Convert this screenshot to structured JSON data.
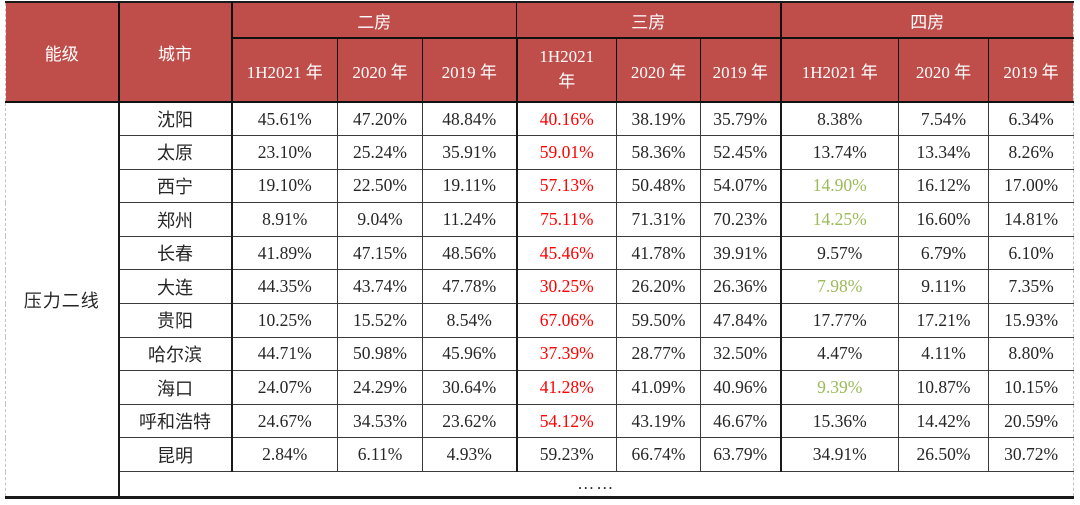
{
  "chart_data": {
    "type": "table",
    "row_header_label": "能级",
    "city_header_label": "城市",
    "tier_label": "压力二线",
    "col_groups": [
      {
        "label": "二房",
        "columns": [
          "1H2021 年",
          "2020 年",
          "2019 年"
        ]
      },
      {
        "label": "三房",
        "columns": [
          "1H2021 年",
          "2020 年",
          "2019 年"
        ]
      },
      {
        "label": "四房",
        "columns": [
          "1H2021 年",
          "2020 年",
          "2019 年"
        ]
      }
    ],
    "rows": [
      {
        "city": "沈阳",
        "values": [
          "45.61%",
          "47.20%",
          "48.84%",
          "40.16%",
          "38.19%",
          "35.79%",
          "8.38%",
          "7.54%",
          "6.34%"
        ],
        "styles": [
          "",
          "",
          "",
          "red",
          "",
          "",
          "",
          "",
          ""
        ]
      },
      {
        "city": "太原",
        "values": [
          "23.10%",
          "25.24%",
          "35.91%",
          "59.01%",
          "58.36%",
          "52.45%",
          "13.74%",
          "13.34%",
          "8.26%"
        ],
        "styles": [
          "",
          "",
          "",
          "red",
          "",
          "",
          "",
          "",
          ""
        ]
      },
      {
        "city": "西宁",
        "values": [
          "19.10%",
          "22.50%",
          "19.11%",
          "57.13%",
          "50.48%",
          "54.07%",
          "14.90%",
          "16.12%",
          "17.00%"
        ],
        "styles": [
          "",
          "",
          "",
          "red",
          "",
          "",
          "green",
          "",
          ""
        ]
      },
      {
        "city": "郑州",
        "values": [
          "8.91%",
          "9.04%",
          "11.24%",
          "75.11%",
          "71.31%",
          "70.23%",
          "14.25%",
          "16.60%",
          "14.81%"
        ],
        "styles": [
          "",
          "",
          "",
          "red",
          "",
          "",
          "green",
          "",
          ""
        ]
      },
      {
        "city": "长春",
        "values": [
          "41.89%",
          "47.15%",
          "48.56%",
          "45.46%",
          "41.78%",
          "39.91%",
          "9.57%",
          "6.79%",
          "6.10%"
        ],
        "styles": [
          "",
          "",
          "",
          "red",
          "",
          "",
          "",
          "",
          ""
        ]
      },
      {
        "city": "大连",
        "values": [
          "44.35%",
          "43.74%",
          "47.78%",
          "30.25%",
          "26.20%",
          "26.36%",
          "7.98%",
          "9.11%",
          "7.35%"
        ],
        "styles": [
          "",
          "",
          "",
          "red",
          "",
          "",
          "green",
          "",
          ""
        ]
      },
      {
        "city": "贵阳",
        "values": [
          "10.25%",
          "15.52%",
          "8.54%",
          "67.06%",
          "59.50%",
          "47.84%",
          "17.77%",
          "17.21%",
          "15.93%"
        ],
        "styles": [
          "",
          "",
          "",
          "red",
          "",
          "",
          "",
          "",
          ""
        ]
      },
      {
        "city": "哈尔滨",
        "values": [
          "44.71%",
          "50.98%",
          "45.96%",
          "37.39%",
          "28.77%",
          "32.50%",
          "4.47%",
          "4.11%",
          "8.80%"
        ],
        "styles": [
          "",
          "",
          "",
          "red",
          "",
          "",
          "",
          "",
          ""
        ]
      },
      {
        "city": "海口",
        "values": [
          "24.07%",
          "24.29%",
          "30.64%",
          "41.28%",
          "41.09%",
          "40.96%",
          "9.39%",
          "10.87%",
          "10.15%"
        ],
        "styles": [
          "",
          "",
          "",
          "red",
          "",
          "",
          "green",
          "",
          ""
        ]
      },
      {
        "city": "呼和浩特",
        "values": [
          "24.67%",
          "34.53%",
          "23.62%",
          "54.12%",
          "43.19%",
          "46.67%",
          "15.36%",
          "14.42%",
          "20.59%"
        ],
        "styles": [
          "",
          "",
          "",
          "red",
          "",
          "",
          "",
          "",
          ""
        ]
      },
      {
        "city": "昆明",
        "values": [
          "2.84%",
          "6.11%",
          "4.93%",
          "59.23%",
          "66.74%",
          "63.79%",
          "34.91%",
          "26.50%",
          "30.72%"
        ],
        "styles": [
          "",
          "",
          "",
          "",
          "",
          "",
          "",
          "",
          ""
        ]
      }
    ],
    "ellipsis_row": "……"
  },
  "colors": {
    "header_bg": "#BF4E4B",
    "header_text": "#FFFFFF",
    "highlight_red": "#FF0000",
    "highlight_green": "#9BBB59",
    "body_text": "#262626"
  }
}
